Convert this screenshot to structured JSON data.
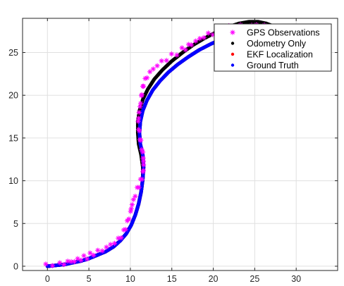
{
  "toolbar": {
    "icons": [
      "edit-icon",
      "brush-icon",
      "datatip-icon",
      "pan-hand-icon",
      "zoom-in-icon",
      "zoom-out-icon",
      "home-icon"
    ]
  },
  "chart_data": {
    "type": "scatter",
    "title": "",
    "xlabel": "",
    "ylabel": "",
    "xlim": [
      -3,
      35
    ],
    "ylim": [
      -0.5,
      29
    ],
    "xticks": [
      0,
      5,
      10,
      15,
      20,
      25,
      30
    ],
    "yticks": [
      0,
      5,
      10,
      15,
      20,
      25
    ],
    "grid": true,
    "legend_position": "top-right",
    "colors": {
      "gps": "#ff00ff",
      "odometry": "#000000",
      "ekf": "#ff0000",
      "truth": "#0000ff",
      "grid": "#e0e0e0",
      "axis": "#262626"
    },
    "series": [
      {
        "name": "GPS Observations",
        "marker": "asterisk",
        "color": "#ff00ff",
        "x": [
          -0.2,
          0.5,
          1.3,
          2.2,
          3.1,
          4.1,
          5.0,
          5.8,
          6.7,
          7.5,
          8.3,
          9.0,
          9.6,
          10.2,
          10.6,
          10.9,
          11.2,
          11.4,
          11.6,
          11.5,
          11.3,
          11.0,
          10.9,
          11.0,
          11.2,
          11.6,
          12.2,
          13.0,
          13.9,
          14.9,
          16.0,
          17.2,
          18.4,
          19.6,
          20.8,
          22.0,
          23.2,
          24.4,
          25.5,
          26.5,
          27.4
        ],
        "y": [
          0.0,
          0.3,
          0.2,
          0.5,
          0.6,
          0.9,
          1.1,
          1.5,
          1.9,
          2.5,
          3.1,
          4.0,
          5.1,
          6.3,
          7.7,
          9.0,
          10.4,
          11.8,
          13.2,
          14.5,
          15.6,
          16.8,
          18.0,
          19.2,
          20.3,
          21.3,
          22.2,
          23.1,
          23.9,
          24.6,
          25.3,
          26.0,
          26.6,
          27.1,
          27.5,
          27.9,
          28.1,
          28.2,
          28.1,
          27.9,
          27.6
        ]
      },
      {
        "name": "Odometry Only",
        "marker": "dot",
        "color": "#000000",
        "x": [
          0.0,
          1.0,
          2.0,
          3.0,
          4.0,
          5.0,
          6.0,
          7.0,
          8.0,
          8.8,
          9.5,
          10.1,
          10.6,
          11.0,
          11.3,
          11.5,
          11.5,
          11.3,
          11.0,
          10.9,
          10.9,
          11.1,
          11.5,
          12.1,
          12.9,
          13.9,
          15.0,
          16.3,
          17.6,
          19.0,
          20.4,
          21.8,
          23.1,
          24.3,
          25.4,
          26.4,
          27.2
        ],
        "y": [
          0.0,
          0.1,
          0.2,
          0.4,
          0.6,
          0.9,
          1.3,
          1.7,
          2.3,
          3.0,
          3.8,
          4.8,
          6.0,
          7.3,
          8.7,
          10.2,
          11.6,
          13.0,
          14.3,
          15.6,
          16.9,
          18.2,
          19.5,
          20.7,
          21.9,
          23.0,
          24.0,
          25.0,
          25.9,
          26.7,
          27.4,
          28.0,
          28.4,
          28.6,
          28.6,
          28.4,
          28.1
        ]
      },
      {
        "name": "EKF Localization",
        "marker": "dot",
        "color": "#ff0000",
        "x": [
          0.0,
          1.0,
          2.0,
          3.0,
          4.0,
          5.0,
          6.0,
          7.0,
          8.0,
          8.8,
          9.5,
          10.1,
          10.6,
          11.0,
          11.3,
          11.5,
          11.6,
          11.5,
          11.2,
          11.1,
          11.2,
          11.5,
          12.0,
          12.7,
          13.6,
          14.6,
          15.7,
          17.0,
          18.3,
          19.7,
          21.1,
          22.5,
          23.8,
          25.0,
          26.1,
          27.0
        ],
        "y": [
          0.0,
          0.1,
          0.2,
          0.4,
          0.6,
          0.9,
          1.3,
          1.7,
          2.3,
          3.0,
          3.8,
          4.8,
          6.0,
          7.3,
          8.7,
          10.2,
          11.6,
          13.0,
          14.3,
          15.6,
          16.9,
          18.2,
          19.4,
          20.6,
          21.7,
          22.7,
          23.6,
          24.5,
          25.3,
          26.0,
          26.6,
          27.1,
          27.4,
          27.6,
          27.6,
          27.5
        ]
      },
      {
        "name": "Ground Truth",
        "marker": "dot",
        "color": "#0000ff",
        "x": [
          0.0,
          1.0,
          2.0,
          3.0,
          4.0,
          5.0,
          6.0,
          7.0,
          8.0,
          8.8,
          9.5,
          10.1,
          10.6,
          11.0,
          11.3,
          11.5,
          11.6,
          11.5,
          11.2,
          11.1,
          11.2,
          11.5,
          12.0,
          12.7,
          13.6,
          14.6,
          15.7,
          17.0,
          18.3,
          19.7,
          21.1,
          22.5,
          23.8,
          25.0,
          26.1,
          27.0
        ],
        "y": [
          0.0,
          0.1,
          0.2,
          0.4,
          0.6,
          0.9,
          1.3,
          1.7,
          2.3,
          3.0,
          3.8,
          4.8,
          6.0,
          7.3,
          8.7,
          10.2,
          11.6,
          13.0,
          14.3,
          15.6,
          16.9,
          18.2,
          19.4,
          20.6,
          21.7,
          22.7,
          23.6,
          24.5,
          25.3,
          26.0,
          26.6,
          27.1,
          27.4,
          27.6,
          27.6,
          27.5
        ]
      }
    ]
  }
}
